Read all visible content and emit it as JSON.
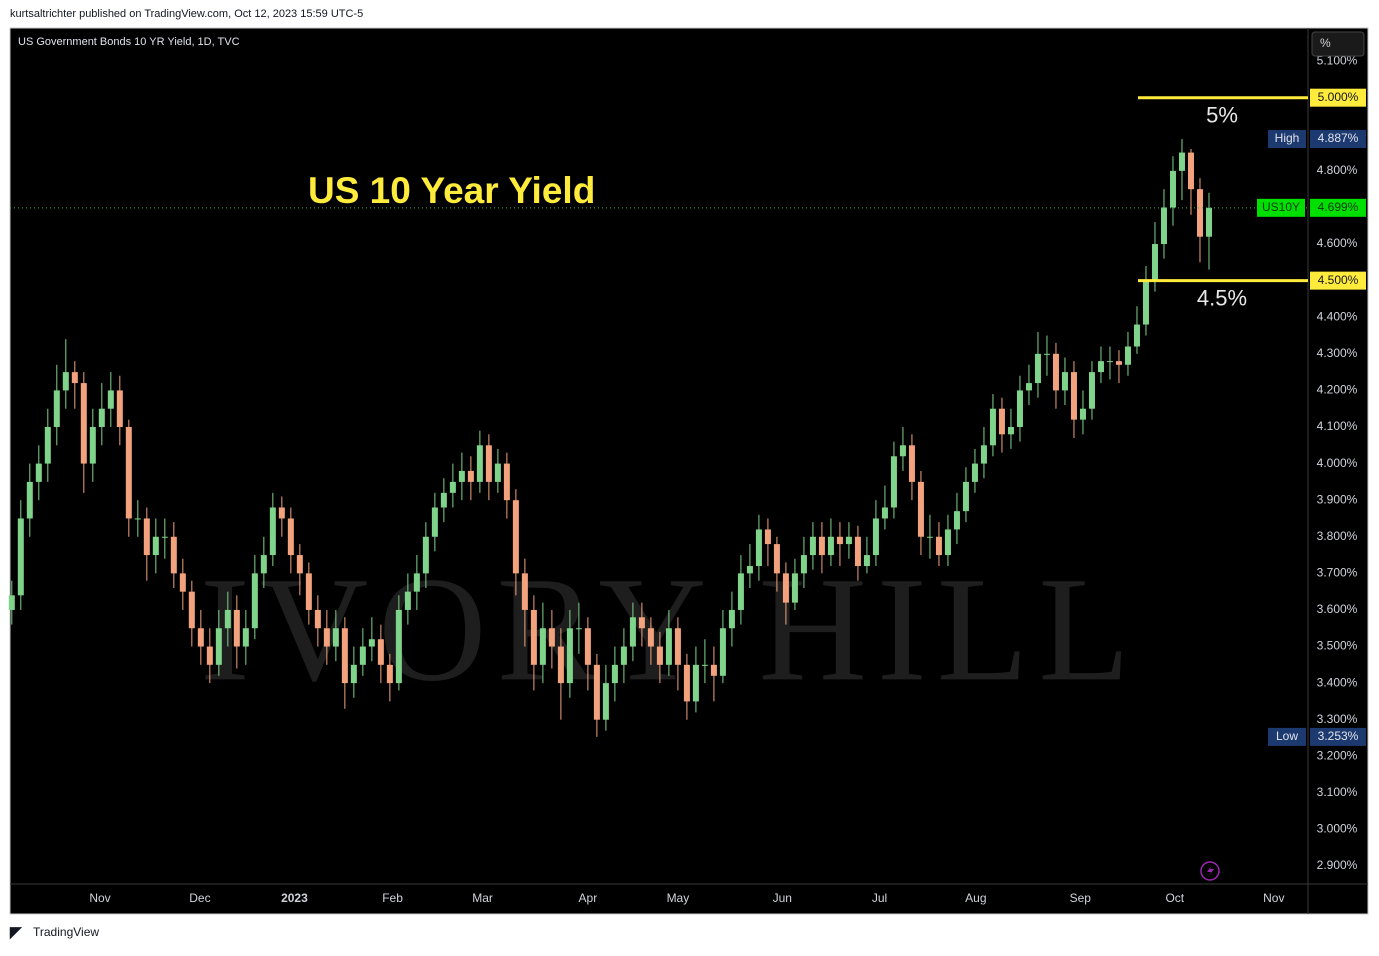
{
  "header": "kurtsaltrichter published on TradingView.com, Oct 12, 2023 15:59 UTC-5",
  "footer": "TradingView",
  "chart_data": {
    "type": "candlestick",
    "title": "US 10 Year Yield",
    "symbol_info": "US Government Bonds 10 YR Yield, 1D, TVC",
    "axis_unit": "%",
    "watermark": "IVORY HILL",
    "up_color": "#7fd38a",
    "down_color": "#f2a27c",
    "grid": false,
    "open": [
      3.6,
      3.64,
      3.85,
      3.95,
      4.0,
      4.1,
      4.2,
      4.25,
      4.22,
      4.0,
      4.1,
      4.15,
      4.2,
      4.1,
      3.85,
      3.85,
      3.75,
      3.8,
      3.8,
      3.7,
      3.65,
      3.55,
      3.5,
      3.45,
      3.55,
      3.6,
      3.5,
      3.55,
      3.7,
      3.75,
      3.88,
      3.85,
      3.75,
      3.7,
      3.6,
      3.55,
      3.5,
      3.55,
      3.4,
      3.45,
      3.5,
      3.52,
      3.45,
      3.4,
      3.6,
      3.65,
      3.7,
      3.8,
      3.88,
      3.92,
      3.95,
      3.98,
      3.95,
      4.05,
      3.95,
      4.0,
      3.9,
      3.7,
      3.6,
      3.45,
      3.55,
      3.5,
      3.4,
      3.55,
      3.55,
      3.45,
      3.3,
      3.4,
      3.45,
      3.5,
      3.58,
      3.55,
      3.5,
      3.45,
      3.55,
      3.45,
      3.35,
      3.45,
      3.45,
      3.42,
      3.55,
      3.6,
      3.7,
      3.72,
      3.82,
      3.78,
      3.7,
      3.62,
      3.7,
      3.75,
      3.8,
      3.75,
      3.8,
      3.78,
      3.8,
      3.72,
      3.75,
      3.85,
      3.88,
      4.02,
      4.05,
      3.95,
      3.8,
      3.8,
      3.75,
      3.82,
      3.87,
      3.95,
      4.0,
      4.05,
      4.15,
      4.08,
      4.1,
      4.2,
      4.22,
      4.3,
      4.3,
      4.2,
      4.25,
      4.12,
      4.15,
      4.25,
      4.28,
      4.28,
      4.27,
      4.32,
      4.38,
      4.5,
      4.6,
      4.7,
      4.8,
      4.85,
      4.75,
      4.62
    ],
    "high": [
      3.68,
      3.9,
      4.0,
      4.05,
      4.15,
      4.27,
      4.34,
      4.28,
      4.25,
      4.15,
      4.22,
      4.25,
      4.24,
      4.12,
      3.9,
      3.88,
      3.85,
      3.85,
      3.84,
      3.74,
      3.68,
      3.6,
      3.55,
      3.6,
      3.65,
      3.64,
      3.6,
      3.75,
      3.8,
      3.92,
      3.91,
      3.88,
      3.78,
      3.73,
      3.64,
      3.6,
      3.6,
      3.58,
      3.5,
      3.55,
      3.58,
      3.56,
      3.48,
      3.64,
      3.7,
      3.75,
      3.84,
      3.92,
      3.96,
      4.0,
      4.03,
      4.02,
      4.09,
      4.08,
      4.04,
      4.03,
      3.93,
      3.74,
      3.64,
      3.62,
      3.6,
      3.55,
      3.6,
      3.62,
      3.58,
      3.48,
      3.45,
      3.5,
      3.55,
      3.62,
      3.62,
      3.58,
      3.54,
      3.6,
      3.58,
      3.48,
      3.5,
      3.52,
      3.5,
      3.6,
      3.65,
      3.75,
      3.78,
      3.86,
      3.85,
      3.8,
      3.73,
      3.74,
      3.8,
      3.84,
      3.84,
      3.85,
      3.84,
      3.84,
      3.83,
      3.8,
      3.9,
      3.94,
      4.06,
      4.1,
      4.08,
      3.98,
      3.86,
      3.84,
      3.86,
      3.92,
      3.99,
      4.04,
      4.1,
      4.19,
      4.18,
      4.15,
      4.24,
      4.27,
      4.36,
      4.35,
      4.33,
      4.29,
      4.28,
      4.2,
      4.28,
      4.32,
      4.32,
      4.31,
      4.36,
      4.43,
      4.54,
      4.66,
      4.75,
      4.84,
      4.887,
      4.86,
      4.78,
      4.74
    ],
    "low": [
      3.56,
      3.6,
      3.8,
      3.9,
      3.95,
      4.05,
      4.15,
      4.15,
      3.92,
      3.95,
      4.05,
      4.1,
      4.05,
      3.8,
      3.8,
      3.68,
      3.7,
      3.74,
      3.66,
      3.6,
      3.5,
      3.45,
      3.4,
      3.42,
      3.5,
      3.44,
      3.45,
      3.52,
      3.66,
      3.72,
      3.8,
      3.7,
      3.64,
      3.56,
      3.5,
      3.45,
      3.46,
      3.33,
      3.36,
      3.42,
      3.46,
      3.4,
      3.35,
      3.38,
      3.56,
      3.6,
      3.66,
      3.76,
      3.84,
      3.88,
      3.9,
      3.9,
      3.92,
      3.9,
      3.92,
      3.85,
      3.64,
      3.5,
      3.38,
      3.4,
      3.44,
      3.3,
      3.36,
      3.48,
      3.38,
      3.253,
      3.27,
      3.35,
      3.4,
      3.46,
      3.5,
      3.45,
      3.4,
      3.42,
      3.38,
      3.3,
      3.32,
      3.4,
      3.35,
      3.4,
      3.5,
      3.56,
      3.66,
      3.68,
      3.72,
      3.65,
      3.56,
      3.6,
      3.66,
      3.71,
      3.7,
      3.72,
      3.72,
      3.74,
      3.68,
      3.7,
      3.72,
      3.82,
      3.85,
      3.98,
      3.9,
      3.75,
      3.74,
      3.72,
      3.72,
      3.78,
      3.84,
      3.92,
      3.96,
      4.02,
      4.03,
      4.04,
      4.06,
      4.16,
      4.18,
      4.24,
      4.15,
      4.16,
      4.07,
      4.08,
      4.12,
      4.22,
      4.23,
      4.22,
      4.24,
      4.3,
      4.35,
      4.47,
      4.56,
      4.65,
      4.72,
      4.68,
      4.55,
      4.53
    ],
    "close": [
      3.64,
      3.85,
      3.95,
      4.0,
      4.1,
      4.2,
      4.25,
      4.22,
      4.0,
      4.1,
      4.15,
      4.2,
      4.1,
      3.85,
      3.85,
      3.75,
      3.8,
      3.8,
      3.7,
      3.65,
      3.55,
      3.5,
      3.45,
      3.55,
      3.6,
      3.5,
      3.55,
      3.7,
      3.75,
      3.88,
      3.85,
      3.75,
      3.7,
      3.6,
      3.55,
      3.5,
      3.55,
      3.4,
      3.45,
      3.5,
      3.52,
      3.45,
      3.4,
      3.6,
      3.65,
      3.7,
      3.8,
      3.88,
      3.92,
      3.95,
      3.98,
      3.95,
      4.05,
      3.95,
      4.0,
      3.9,
      3.7,
      3.6,
      3.45,
      3.55,
      3.5,
      3.4,
      3.55,
      3.55,
      3.45,
      3.3,
      3.4,
      3.45,
      3.5,
      3.58,
      3.55,
      3.5,
      3.45,
      3.55,
      3.45,
      3.35,
      3.45,
      3.45,
      3.42,
      3.55,
      3.6,
      3.7,
      3.72,
      3.82,
      3.78,
      3.7,
      3.62,
      3.7,
      3.75,
      3.8,
      3.75,
      3.8,
      3.78,
      3.8,
      3.72,
      3.75,
      3.85,
      3.88,
      4.02,
      4.05,
      3.95,
      3.8,
      3.8,
      3.75,
      3.82,
      3.87,
      3.95,
      4.0,
      4.05,
      4.15,
      4.08,
      4.1,
      4.2,
      4.22,
      4.3,
      4.3,
      4.2,
      4.25,
      4.12,
      4.15,
      4.25,
      4.28,
      4.28,
      4.27,
      4.32,
      4.38,
      4.5,
      4.6,
      4.7,
      4.8,
      4.85,
      4.75,
      4.62,
      4.699
    ],
    "xlim": [
      -0.2,
      144
    ],
    "xticks": [
      {
        "value": 9.8,
        "label": "Nov"
      },
      {
        "value": 20.9,
        "label": "Dec"
      },
      {
        "value": 31.4,
        "label": "2023"
      },
      {
        "value": 42.3,
        "label": "Feb"
      },
      {
        "value": 52.3,
        "label": "Mar"
      },
      {
        "value": 64,
        "label": "Apr"
      },
      {
        "value": 74,
        "label": "May"
      },
      {
        "value": 85.6,
        "label": "Jun"
      },
      {
        "value": 96.4,
        "label": "Jul"
      },
      {
        "value": 107.1,
        "label": "Aug"
      },
      {
        "value": 118.7,
        "label": "Sep"
      },
      {
        "value": 129.2,
        "label": "Oct"
      },
      {
        "value": 140.2,
        "label": "Nov"
      }
    ],
    "ylim": [
      2.851,
      5.185
    ],
    "yticks": [
      {
        "value": 2.9,
        "label": "2.900%"
      },
      {
        "value": 3.0,
        "label": "3.000%"
      },
      {
        "value": 3.1,
        "label": "3.100%"
      },
      {
        "value": 3.2,
        "label": "3.200%"
      },
      {
        "value": 3.3,
        "label": "3.300%"
      },
      {
        "value": 3.4,
        "label": "3.400%"
      },
      {
        "value": 3.5,
        "label": "3.500%"
      },
      {
        "value": 3.6,
        "label": "3.600%"
      },
      {
        "value": 3.7,
        "label": "3.700%"
      },
      {
        "value": 3.8,
        "label": "3.800%"
      },
      {
        "value": 3.9,
        "label": "3.900%"
      },
      {
        "value": 4.0,
        "label": "4.000%"
      },
      {
        "value": 4.1,
        "label": "4.100%"
      },
      {
        "value": 4.2,
        "label": "4.200%"
      },
      {
        "value": 4.3,
        "label": "4.300%"
      },
      {
        "value": 4.4,
        "label": "4.400%"
      },
      {
        "value": 4.6,
        "label": "4.600%"
      },
      {
        "value": 4.8,
        "label": "4.800%"
      },
      {
        "value": 5.1,
        "label": "5.100%"
      }
    ],
    "levels": [
      {
        "value": 5.0,
        "label": "5.000%",
        "annotation": "5%"
      },
      {
        "value": 4.5,
        "label": "4.500%",
        "annotation": "4.5%"
      }
    ],
    "last": {
      "symbol": "US10Y",
      "value": 4.699,
      "label": "4.699%"
    },
    "high_marker": {
      "name": "High",
      "value": 4.887,
      "label": "4.887%"
    },
    "low_marker": {
      "name": "Low",
      "value": 3.253,
      "label": "3.253%"
    }
  }
}
